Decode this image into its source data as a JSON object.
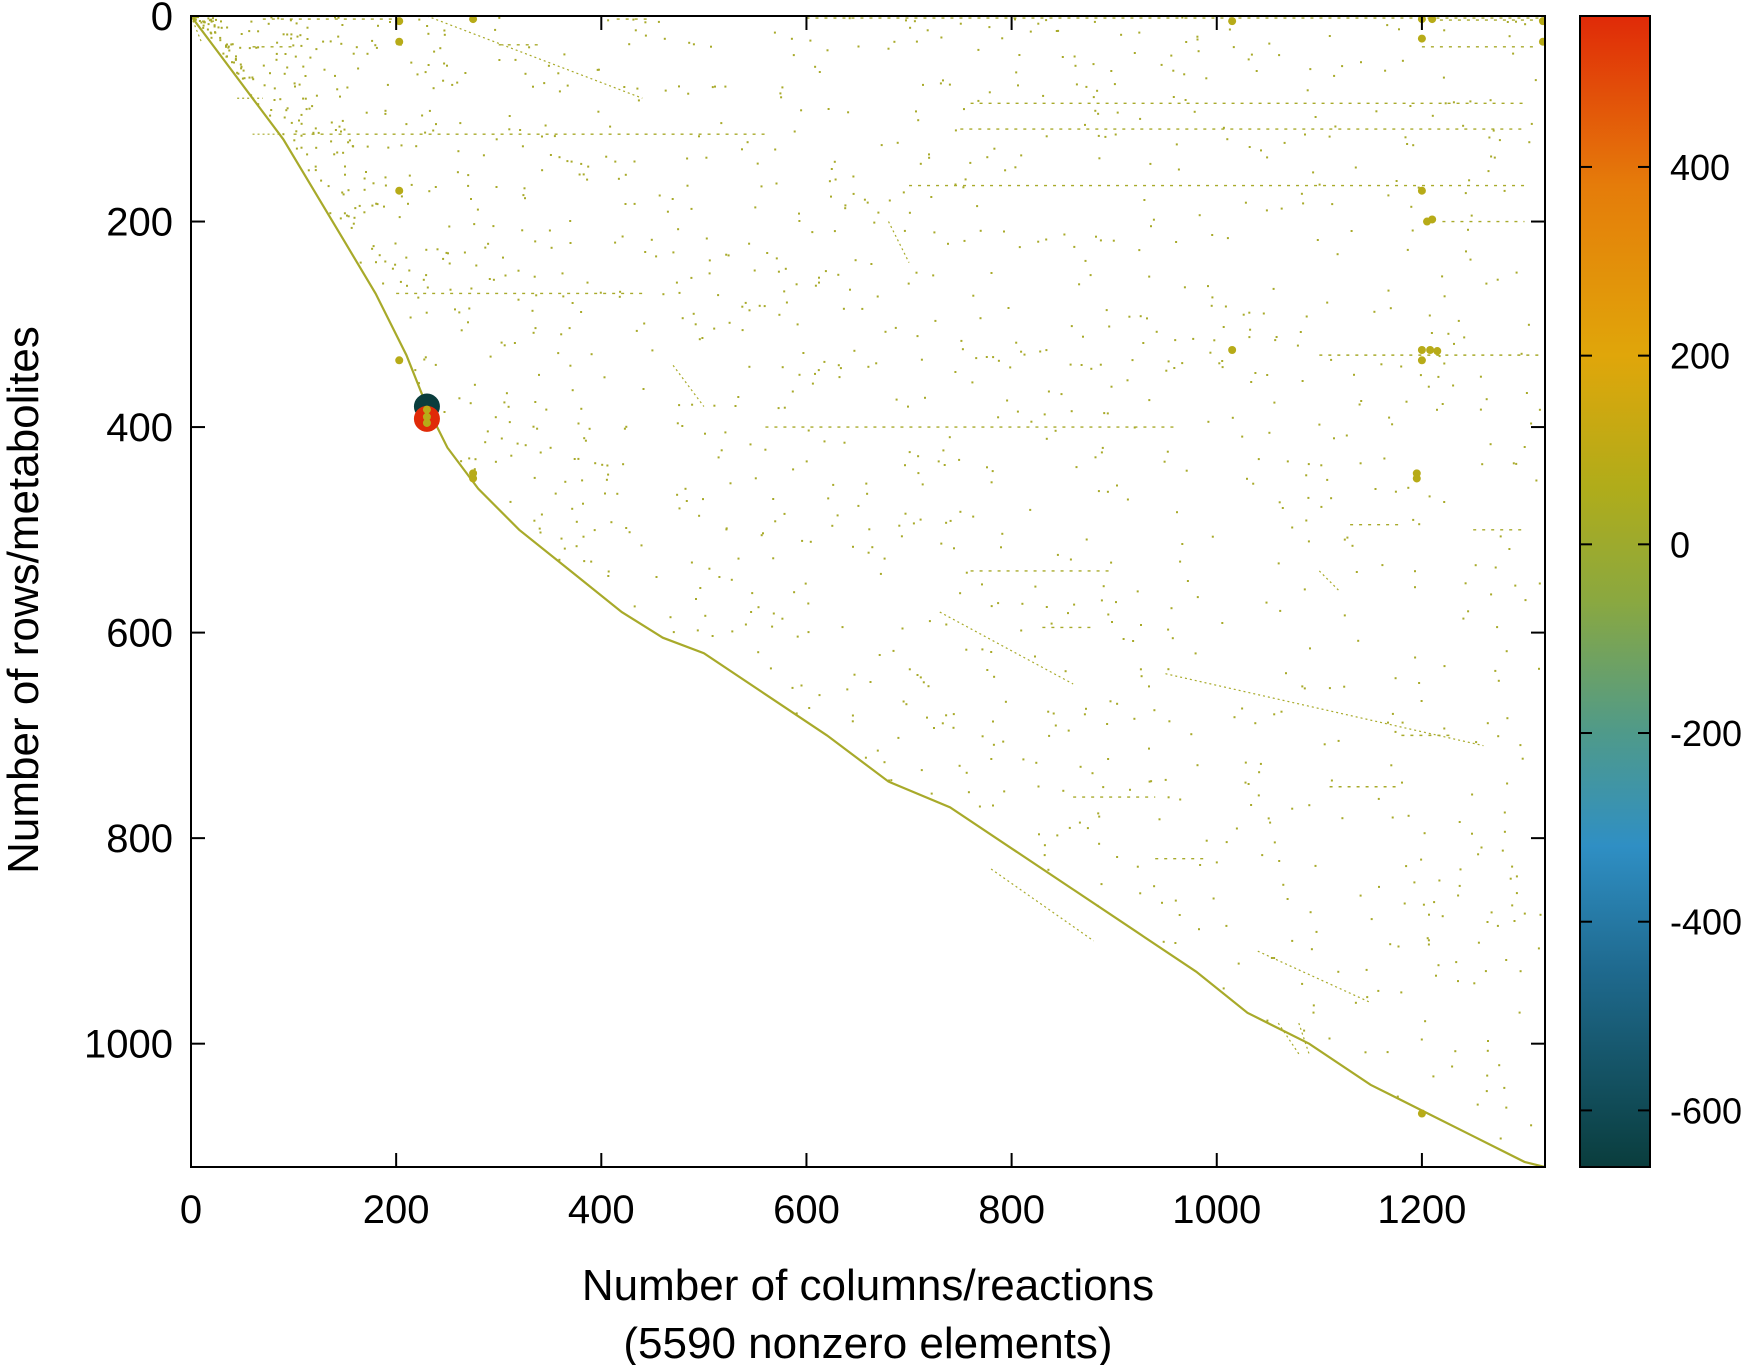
{
  "chart_data": {
    "type": "scatter",
    "subtype": "sparse-matrix-spy-plot",
    "xlabel": "Number of columns/reactions",
    "xlabel_line2": "(5590 nonzero elements)",
    "ylabel": "Number of rows/metabolites",
    "xlim": [
      0,
      1320
    ],
    "ylim": [
      1120,
      0
    ],
    "x_ticks": [
      0,
      200,
      400,
      600,
      800,
      1000,
      1200
    ],
    "y_ticks": [
      0,
      200,
      400,
      600,
      800,
      1000
    ],
    "grid": false,
    "colorbar": {
      "range": [
        -660,
        560
      ],
      "ticks": [
        400,
        200,
        0,
        -200,
        -400,
        -600
      ],
      "colormap_stops": [
        {
          "value": -660,
          "color": "#0a3d3d"
        },
        {
          "value": -450,
          "color": "#1f6a8f"
        },
        {
          "value": -320,
          "color": "#2f8fc4"
        },
        {
          "value": -200,
          "color": "#4f9a8a"
        },
        {
          "value": -60,
          "color": "#8aa840"
        },
        {
          "value": 60,
          "color": "#b0ac1a"
        },
        {
          "value": 200,
          "color": "#e0a60a"
        },
        {
          "value": 380,
          "color": "#e57c0a"
        },
        {
          "value": 560,
          "color": "#e02a08"
        }
      ]
    },
    "marker_color": "#a8aa2a",
    "diagonal_band": [
      [
        0,
        0
      ],
      [
        30,
        40
      ],
      [
        60,
        80
      ],
      [
        90,
        120
      ],
      [
        120,
        170
      ],
      [
        150,
        220
      ],
      [
        180,
        270
      ],
      [
        210,
        330
      ],
      [
        230,
        380
      ],
      [
        250,
        420
      ],
      [
        280,
        460
      ],
      [
        320,
        500
      ],
      [
        370,
        540
      ],
      [
        420,
        580
      ],
      [
        460,
        605
      ],
      [
        500,
        620
      ],
      [
        560,
        660
      ],
      [
        620,
        700
      ],
      [
        680,
        745
      ],
      [
        740,
        770
      ],
      [
        800,
        810
      ],
      [
        860,
        850
      ],
      [
        920,
        890
      ],
      [
        980,
        930
      ],
      [
        1030,
        970
      ],
      [
        1090,
        1000
      ],
      [
        1150,
        1040
      ],
      [
        1200,
        1065
      ],
      [
        1250,
        1090
      ],
      [
        1300,
        1115
      ],
      [
        1320,
        1120
      ]
    ],
    "side_segments": [
      [
        [
          0,
          0
        ],
        [
          10,
          25
        ]
      ],
      [
        [
          45,
          80
        ],
        [
          70,
          80
        ]
      ],
      [
        [
          60,
          115
        ],
        [
          90,
          115
        ]
      ],
      [
        [
          230,
          0
        ],
        [
          440,
          80
        ]
      ],
      [
        [
          470,
          340
        ],
        [
          500,
          380
        ]
      ],
      [
        [
          680,
          200
        ],
        [
          700,
          240
        ]
      ],
      [
        [
          730,
          580
        ],
        [
          860,
          650
        ]
      ],
      [
        [
          780,
          830
        ],
        [
          880,
          900
        ]
      ],
      [
        [
          1060,
          980
        ],
        [
          1080,
          1010
        ]
      ],
      [
        [
          1100,
          540
        ],
        [
          1120,
          560
        ]
      ],
      [
        [
          1080,
          980
        ],
        [
          1090,
          1010
        ]
      ],
      [
        [
          950,
          640
        ],
        [
          1260,
          710
        ]
      ],
      [
        [
          1040,
          910
        ],
        [
          1150,
          960
        ]
      ]
    ],
    "horizontal_segments": [
      [
        2,
        30,
        5
      ],
      [
        70,
        200,
        3
      ],
      [
        415,
        450,
        3
      ],
      [
        600,
        1320,
        2
      ],
      [
        1200,
        1320,
        4
      ],
      [
        60,
        100,
        30
      ],
      [
        300,
        340,
        28
      ],
      [
        1200,
        1310,
        30
      ],
      [
        760,
        1300,
        85
      ],
      [
        100,
        560,
        115
      ],
      [
        750,
        1300,
        110
      ],
      [
        700,
        1300,
        165
      ],
      [
        1220,
        1300,
        200
      ],
      [
        200,
        440,
        270
      ],
      [
        1100,
        1320,
        330
      ],
      [
        560,
        960,
        400
      ],
      [
        1130,
        1180,
        495
      ],
      [
        1250,
        1300,
        500
      ],
      [
        860,
        940,
        760
      ],
      [
        940,
        990,
        820
      ],
      [
        1110,
        1180,
        750
      ],
      [
        760,
        900,
        540
      ],
      [
        1180,
        1230,
        700
      ],
      [
        830,
        880,
        595
      ]
    ],
    "points": [
      {
        "x": 203,
        "y": 5,
        "v": 80
      },
      {
        "x": 203,
        "y": 25,
        "v": 80
      },
      {
        "x": 275,
        "y": 3,
        "v": 80
      },
      {
        "x": 203,
        "y": 170,
        "v": 80
      },
      {
        "x": 203,
        "y": 335,
        "v": 80
      },
      {
        "x": 1015,
        "y": 5,
        "v": 80
      },
      {
        "x": 1015,
        "y": 325,
        "v": 80
      },
      {
        "x": 1200,
        "y": 3,
        "v": 80
      },
      {
        "x": 1210,
        "y": 3,
        "v": 80
      },
      {
        "x": 1200,
        "y": 22,
        "v": 80
      },
      {
        "x": 1200,
        "y": 170,
        "v": 80
      },
      {
        "x": 1205,
        "y": 200,
        "v": 80
      },
      {
        "x": 1210,
        "y": 198,
        "v": 80
      },
      {
        "x": 1200,
        "y": 325,
        "v": 80
      },
      {
        "x": 1208,
        "y": 325,
        "v": 80
      },
      {
        "x": 1215,
        "y": 326,
        "v": 80
      },
      {
        "x": 1200,
        "y": 335,
        "v": 80
      },
      {
        "x": 1195,
        "y": 445,
        "v": 80
      },
      {
        "x": 1195,
        "y": 450,
        "v": 80
      },
      {
        "x": 1318,
        "y": 5,
        "v": 80
      },
      {
        "x": 1318,
        "y": 25,
        "v": 80
      },
      {
        "x": 275,
        "y": 445,
        "v": 80
      },
      {
        "x": 275,
        "y": 450,
        "v": 80
      },
      {
        "x": 1200,
        "y": 1068,
        "v": 80
      },
      {
        "x": 230,
        "y": 380,
        "v": -660
      },
      {
        "x": 230,
        "y": 392,
        "v": 560
      },
      {
        "x": 230,
        "y": 383,
        "v": 80
      },
      {
        "x": 230,
        "y": 390,
        "v": 80
      },
      {
        "x": 230,
        "y": 396,
        "v": 80
      }
    ]
  }
}
